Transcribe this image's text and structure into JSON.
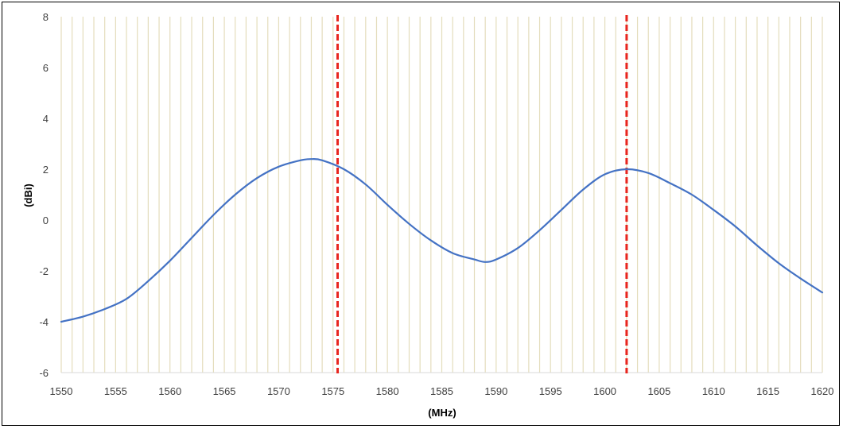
{
  "chart_data": {
    "type": "line",
    "title": "",
    "xlabel": "(MHz)",
    "ylabel": "(dBi)",
    "xlim": [
      1550,
      1620
    ],
    "ylim": [
      -6,
      8
    ],
    "x_ticks": [
      1550,
      1555,
      1560,
      1565,
      1570,
      1575,
      1580,
      1585,
      1590,
      1595,
      1600,
      1605,
      1610,
      1615,
      1620
    ],
    "y_ticks": [
      8,
      6,
      4,
      2,
      0,
      -2,
      -4,
      -6
    ],
    "grid": "vertical minor gridlines every 1 MHz",
    "legend": "none",
    "series": [
      {
        "color": "#4472C4",
        "x": [
          1550,
          1552,
          1554,
          1556,
          1558,
          1560,
          1562,
          1564,
          1566,
          1568,
          1570,
          1572,
          1573,
          1574,
          1576,
          1578,
          1580,
          1582,
          1584,
          1586,
          1588,
          1589,
          1590,
          1592,
          1594,
          1596,
          1598,
          1600,
          1602,
          1604,
          1606,
          1608,
          1610,
          1612,
          1614,
          1616,
          1618,
          1620
        ],
        "y": [
          -4.0,
          -3.8,
          -3.5,
          -3.1,
          -2.4,
          -1.6,
          -0.7,
          0.2,
          1.0,
          1.65,
          2.1,
          2.35,
          2.4,
          2.35,
          2.0,
          1.4,
          0.6,
          -0.15,
          -0.8,
          -1.3,
          -1.55,
          -1.65,
          -1.55,
          -1.1,
          -0.4,
          0.4,
          1.2,
          1.8,
          2.0,
          1.85,
          1.45,
          1.0,
          0.4,
          -0.25,
          -1.0,
          -1.7,
          -2.3,
          -2.85
        ]
      }
    ],
    "reference_lines": [
      {
        "x": 1575.42,
        "color": "#E8251E",
        "style": "dashed"
      },
      {
        "x": 1602,
        "color": "#E8251E",
        "style": "dashed"
      }
    ]
  }
}
